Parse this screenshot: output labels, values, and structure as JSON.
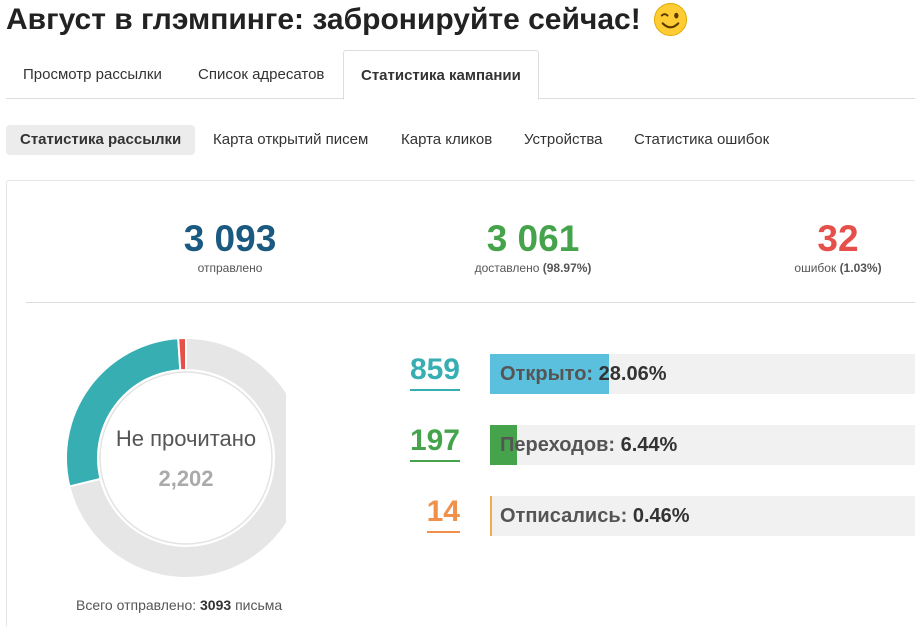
{
  "page": {
    "title": "Август в глэмпинге: забронируйте сейчас!",
    "title_icon": "wink-emoji"
  },
  "tabs": [
    {
      "label": "Просмотр рассылки",
      "active": false
    },
    {
      "label": "Список адресатов",
      "active": false
    },
    {
      "label": "Статистика кампании",
      "active": true
    }
  ],
  "subtabs": [
    {
      "label": "Статистика рассылки",
      "active": true
    },
    {
      "label": "Карта открытий писем",
      "active": false
    },
    {
      "label": "Карта кликов",
      "active": false
    },
    {
      "label": "Устройства",
      "active": false
    },
    {
      "label": "Статистика ошибок",
      "active": false
    }
  ],
  "kpis": {
    "sent": {
      "value": "3 093",
      "label": "отправлено",
      "color": "#1a5a80"
    },
    "delivered": {
      "value": "3 061",
      "label": "доставлено",
      "pct": "(98.97%)",
      "color": "#45a34c"
    },
    "errors": {
      "value": "32",
      "label": "ошибок",
      "pct": "(1.03%)",
      "color": "#e5504a"
    }
  },
  "donut": {
    "center_label": "Не прочитано",
    "center_value": "2,202",
    "segments": [
      {
        "name": "unread",
        "value": 2202,
        "color": "#e6e6e6"
      },
      {
        "name": "opened",
        "value": 859,
        "color": "#36aeb2"
      },
      {
        "name": "errors",
        "value": 32,
        "color": "#e5504a"
      }
    ]
  },
  "total_sent": {
    "label": "Всего отправлено:",
    "value": "3093",
    "unit": "письма"
  },
  "stats": [
    {
      "number": "859",
      "label": "Открыто:",
      "value": "28.06%",
      "fraction": 0.2806,
      "color": "#36aeb2",
      "bar_color": "#5bc0de"
    },
    {
      "number": "197",
      "label": "Переходов:",
      "value": "6.44%",
      "fraction": 0.0644,
      "color": "#45a34c",
      "bar_color": "#45a34c"
    },
    {
      "number": "14",
      "label": "Отписались:",
      "value": "0.46%",
      "fraction": 0.0046,
      "color": "#f0904a",
      "bar_color": "#f0ad4e"
    }
  ]
}
